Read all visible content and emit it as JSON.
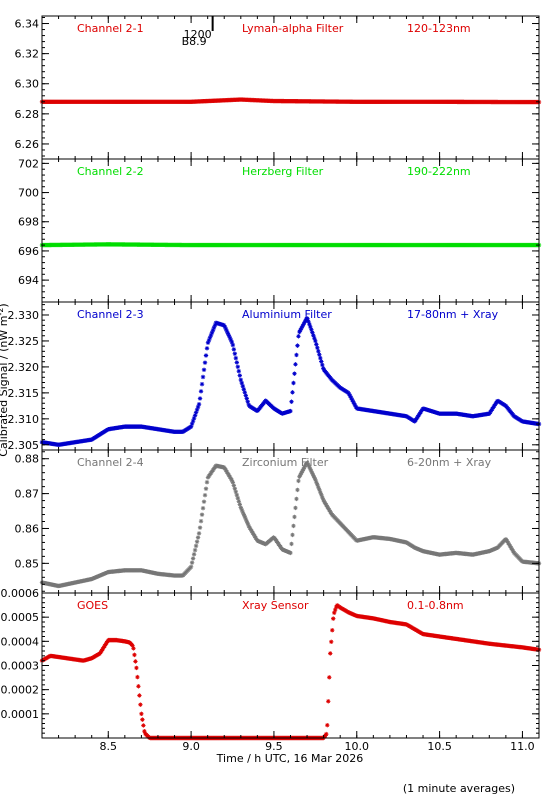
{
  "figure": {
    "xlabel": "Time / h UTC, 16 Mar 2026",
    "ylabel": "Calibrated Signal / (nW m",
    "ylabel_sup": "-2",
    "ylabel_end": ")",
    "footnote": "(1 minute averages)",
    "marker_label_top": "1200",
    "marker_label_bottom": "B8.9",
    "marker_x": 9.13
  },
  "chart_data": [
    {
      "type": "scatter",
      "label": "Channel 2-1",
      "filter": "Lyman-alpha Filter",
      "band": "120-123nm",
      "color": "#dd0000",
      "xlim": [
        8.1,
        11.1
      ],
      "ylim": [
        6.25,
        6.345
      ],
      "yticks": [
        6.26,
        6.28,
        6.3,
        6.32,
        6.34
      ],
      "ytick_labels": [
        "6.26",
        "6.28",
        "6.30",
        "6.32",
        "6.34"
      ],
      "x": [
        8.1,
        8.5,
        9.0,
        9.3,
        9.5,
        10.0,
        10.5,
        11.0,
        11.1
      ],
      "y": [
        6.288,
        6.288,
        6.288,
        6.2895,
        6.2885,
        6.288,
        6.288,
        6.2878,
        6.2878
      ]
    },
    {
      "type": "scatter",
      "label": "Channel 2-2",
      "filter": "Herzberg Filter",
      "band": "190-222nm",
      "color": "#00dd00",
      "xlim": [
        8.1,
        11.1
      ],
      "ylim": [
        692.5,
        702.3
      ],
      "yticks": [
        694,
        696,
        698,
        700,
        702
      ],
      "ytick_labels": [
        "694",
        "696",
        "698",
        "700",
        "702"
      ],
      "x": [
        8.1,
        8.5,
        9.0,
        9.5,
        10.0,
        10.5,
        11.0,
        11.1
      ],
      "y": [
        696.4,
        696.45,
        696.4,
        696.4,
        696.4,
        696.4,
        696.4,
        696.4
      ]
    },
    {
      "type": "scatter",
      "label": "Channel 2-3",
      "filter": "Aluminium Filter",
      "band": "17-80nm + Xray",
      "color": "#0000cc",
      "xlim": [
        8.1,
        11.1
      ],
      "ylim": [
        2.304,
        2.3325
      ],
      "yticks": [
        2.305,
        2.31,
        2.315,
        2.32,
        2.325,
        2.33
      ],
      "ytick_labels": [
        "2.305",
        "2.310",
        "2.315",
        "2.320",
        "2.325",
        "2.330"
      ],
      "x": [
        8.1,
        8.2,
        8.3,
        8.4,
        8.5,
        8.6,
        8.7,
        8.8,
        8.9,
        8.95,
        9.0,
        9.05,
        9.1,
        9.15,
        9.2,
        9.25,
        9.3,
        9.35,
        9.4,
        9.45,
        9.5,
        9.55,
        9.6,
        9.65,
        9.7,
        9.75,
        9.8,
        9.85,
        9.9,
        9.95,
        10.0,
        10.1,
        10.2,
        10.3,
        10.35,
        10.4,
        10.45,
        10.5,
        10.6,
        10.7,
        10.8,
        10.85,
        10.9,
        10.95,
        11.0,
        11.1
      ],
      "y": [
        2.3055,
        2.305,
        2.3055,
        2.306,
        2.308,
        2.3085,
        2.3085,
        2.308,
        2.3075,
        2.3075,
        2.3085,
        2.313,
        2.3245,
        2.3285,
        2.328,
        2.3245,
        2.3175,
        2.3125,
        2.3115,
        2.3135,
        2.312,
        2.311,
        2.3115,
        2.3265,
        2.3295,
        2.325,
        2.3195,
        2.3175,
        2.316,
        2.315,
        2.312,
        2.3115,
        2.311,
        2.3105,
        2.3095,
        2.312,
        2.3115,
        2.311,
        2.311,
        2.3105,
        2.311,
        2.3135,
        2.3125,
        2.3105,
        2.3095,
        2.309
      ]
    },
    {
      "type": "scatter",
      "label": "Channel 2-4",
      "filter": "Zirconium Filter",
      "band": "6-20nm + Xray",
      "color": "#777777",
      "xlim": [
        8.1,
        11.1
      ],
      "ylim": [
        0.8415,
        0.8825
      ],
      "yticks": [
        0.85,
        0.86,
        0.87,
        0.88
      ],
      "ytick_labels": [
        "0.85",
        "0.86",
        "0.87",
        "0.88"
      ],
      "x": [
        8.1,
        8.2,
        8.3,
        8.4,
        8.5,
        8.6,
        8.7,
        8.8,
        8.9,
        8.95,
        9.0,
        9.05,
        9.1,
        9.15,
        9.2,
        9.25,
        9.3,
        9.35,
        9.4,
        9.45,
        9.5,
        9.55,
        9.6,
        9.65,
        9.7,
        9.75,
        9.8,
        9.85,
        9.9,
        9.95,
        10.0,
        10.1,
        10.2,
        10.3,
        10.35,
        10.4,
        10.45,
        10.5,
        10.6,
        10.7,
        10.8,
        10.85,
        10.9,
        10.95,
        11.0,
        11.1
      ],
      "y": [
        0.8445,
        0.8435,
        0.8445,
        0.8455,
        0.8475,
        0.848,
        0.848,
        0.847,
        0.8465,
        0.8465,
        0.849,
        0.859,
        0.8745,
        0.878,
        0.8775,
        0.8735,
        0.866,
        0.8605,
        0.8565,
        0.8555,
        0.8575,
        0.854,
        0.853,
        0.8745,
        0.879,
        0.874,
        0.868,
        0.864,
        0.8615,
        0.859,
        0.8565,
        0.8575,
        0.857,
        0.856,
        0.8545,
        0.8535,
        0.853,
        0.8525,
        0.853,
        0.8525,
        0.8535,
        0.8545,
        0.857,
        0.853,
        0.8505,
        0.85
      ]
    },
    {
      "type": "scatter",
      "label": "GOES",
      "filter": "Xray Sensor",
      "band": "0.1-0.8nm",
      "color": "#dd0000",
      "xlim": [
        8.1,
        11.1
      ],
      "ylim": [
        0.0,
        0.0006
      ],
      "yticks": [
        0.0001,
        0.0002,
        0.0003,
        0.0004,
        0.0005,
        0.0006
      ],
      "ytick_labels": [
        "0.0001",
        "0.0002",
        "0.0003",
        "0.0004",
        "0.0005",
        "0.0006"
      ],
      "x": [
        8.1,
        8.15,
        8.2,
        8.25,
        8.3,
        8.35,
        8.4,
        8.45,
        8.5,
        8.55,
        8.6,
        8.63,
        8.65,
        8.67,
        8.7,
        8.72,
        8.75,
        9.0,
        9.5,
        9.8,
        9.82,
        9.84,
        9.86,
        9.88,
        9.9,
        9.95,
        10.0,
        10.1,
        10.2,
        10.3,
        10.4,
        10.5,
        10.6,
        10.8,
        11.0,
        11.1
      ],
      "y": [
        0.00032,
        0.00034,
        0.000335,
        0.00033,
        0.000325,
        0.00032,
        0.00033,
        0.00035,
        0.000405,
        0.000405,
        0.0004,
        0.000395,
        0.00038,
        0.00029,
        0.0001,
        2e-05,
        0.0,
        0.0,
        0.0,
        0.0,
        2e-05,
        0.00035,
        0.00051,
        0.00055,
        0.00054,
        0.00052,
        0.000505,
        0.000495,
        0.00048,
        0.00047,
        0.00043,
        0.00042,
        0.00041,
        0.00039,
        0.000375,
        0.000365
      ]
    }
  ],
  "xaxis": {
    "ticks": [
      8.5,
      9.0,
      9.5,
      10.0,
      10.5,
      11.0
    ],
    "tick_labels": [
      "8.5",
      "9.0",
      "9.5",
      "10.0",
      "10.5",
      "11.0"
    ],
    "minor_step": 0.1
  }
}
